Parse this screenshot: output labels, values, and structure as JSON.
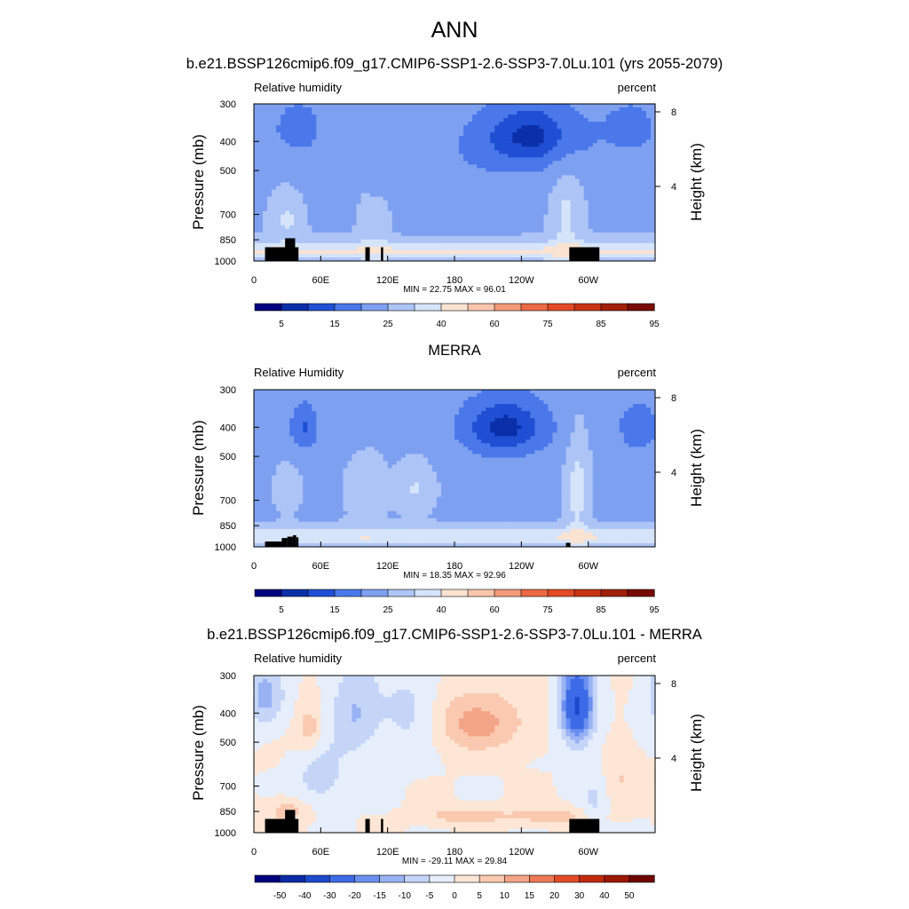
{
  "figure": {
    "title": "ANN",
    "panels": [
      {
        "title": "b.e21.BSSP126cmip6.f09_g17.CMIP6-SSP1-2.6-SSP3-7.0Lu.101 (yrs 2055-2079)",
        "variable": "Relative humidity",
        "units": "percent",
        "min_max": "MIN =  22.75  MAX =  96.01"
      },
      {
        "title": "MERRA",
        "variable": "Relative Humidity",
        "units": "percent",
        "min_max": "MIN =  18.35  MAX =  92.96"
      },
      {
        "title": "b.e21.BSSP126cmip6.f09_g17.CMIP6-SSP1-2.6-SSP3-7.0Lu.101 - MERRA",
        "variable": "Relative humidity",
        "units": "percent",
        "min_max": "MIN = -29.11  MAX =  29.84"
      }
    ],
    "y_label": "Pressure (mb)",
    "right_label": "Height (km)"
  },
  "chart_data": [
    {
      "type": "heatmap",
      "name": "model",
      "title": "b.e21.BSSP126cmip6.f09_g17.CMIP6-SSP1-2.6-SSP3-7.0Lu.101 (yrs 2055-2079)",
      "variable": "Relative humidity",
      "units": "percent",
      "x_ticks": [
        "0",
        "60E",
        "120E",
        "180",
        "120W",
        "60W"
      ],
      "x_tick_lon": [
        0,
        60,
        120,
        180,
        240,
        300
      ],
      "x_range": [
        0,
        360
      ],
      "y_ticks": [
        "300",
        "400",
        "500",
        "700",
        "850",
        "1000"
      ],
      "y_tick_p": [
        300,
        400,
        500,
        700,
        850,
        1000
      ],
      "y_range": [
        300,
        1000
      ],
      "height_ticks": [
        "8",
        "4"
      ],
      "height_tick_km": [
        8,
        4
      ],
      "levels": [
        5,
        15,
        25,
        40,
        60,
        75,
        85,
        95
      ],
      "min": 22.75,
      "max": 96.01,
      "field_blobs": [
        {
          "lon": 40,
          "p": 360,
          "amp": -30,
          "slon": 16,
          "sp": 55
        },
        {
          "lon": 250,
          "p": 380,
          "amp": -42,
          "slon": 38,
          "sp": 80
        },
        {
          "lon": 340,
          "p": 360,
          "amp": -25,
          "slon": 18,
          "sp": 60
        },
        {
          "lon": 170,
          "p": 520,
          "amp": -12,
          "slon": 70,
          "sp": 150
        },
        {
          "lon": 30,
          "p": 720,
          "amp": 20,
          "slon": 10,
          "sp": 90
        },
        {
          "lon": 100,
          "p": 720,
          "amp": 15,
          "slon": 6,
          "sp": 110
        },
        {
          "lon": 115,
          "p": 720,
          "amp": 15,
          "slon": 6,
          "sp": 110
        },
        {
          "lon": 280,
          "p": 700,
          "amp": 22,
          "slon": 10,
          "sp": 170
        }
      ]
    },
    {
      "type": "heatmap",
      "name": "merra",
      "title": "MERRA",
      "variable": "Relative Humidity",
      "units": "percent",
      "x_ticks": [
        "0",
        "60E",
        "120E",
        "180",
        "120W",
        "60W"
      ],
      "x_tick_lon": [
        0,
        60,
        120,
        180,
        240,
        300
      ],
      "x_range": [
        0,
        360
      ],
      "y_ticks": [
        "300",
        "400",
        "500",
        "700",
        "850",
        "1000"
      ],
      "y_tick_p": [
        300,
        400,
        500,
        700,
        850,
        1000
      ],
      "y_range": [
        300,
        1000
      ],
      "height_ticks": [
        "8",
        "4"
      ],
      "height_tick_km": [
        8,
        4
      ],
      "levels": [
        5,
        15,
        25,
        40,
        60,
        75,
        85,
        95
      ],
      "min": 18.35,
      "max": 92.96,
      "field_blobs": [
        {
          "lon": 45,
          "p": 400,
          "amp": -32,
          "slon": 10,
          "sp": 60
        },
        {
          "lon": 225,
          "p": 400,
          "amp": -45,
          "slon": 32,
          "sp": 75
        },
        {
          "lon": 345,
          "p": 400,
          "amp": -30,
          "slon": 14,
          "sp": 60
        },
        {
          "lon": 85,
          "p": 380,
          "amp": -10,
          "slon": 15,
          "sp": 60
        },
        {
          "lon": 30,
          "p": 650,
          "amp": 18,
          "slon": 8,
          "sp": 80
        },
        {
          "lon": 100,
          "p": 650,
          "amp": 18,
          "slon": 12,
          "sp": 120
        },
        {
          "lon": 145,
          "p": 640,
          "amp": 20,
          "slon": 12,
          "sp": 90
        },
        {
          "lon": 290,
          "p": 650,
          "amp": 25,
          "slon": 8,
          "sp": 200
        }
      ]
    },
    {
      "type": "heatmap",
      "name": "difference",
      "title": "b.e21.BSSP126cmip6.f09_g17.CMIP6-SSP1-2.6-SSP3-7.0Lu.101 - MERRA",
      "variable": "Relative humidity",
      "units": "percent",
      "x_ticks": [
        "0",
        "60E",
        "120E",
        "180",
        "120W",
        "60W"
      ],
      "x_tick_lon": [
        0,
        60,
        120,
        180,
        240,
        300
      ],
      "x_range": [
        0,
        360
      ],
      "y_ticks": [
        "300",
        "400",
        "500",
        "700",
        "850",
        "1000"
      ],
      "y_tick_p": [
        300,
        400,
        500,
        700,
        850,
        1000
      ],
      "y_range": [
        300,
        1000
      ],
      "height_ticks": [
        "8",
        "4"
      ],
      "height_tick_km": [
        8,
        4
      ],
      "levels": [
        -50,
        -40,
        -30,
        -20,
        -15,
        -10,
        -5,
        0,
        5,
        10,
        15,
        20,
        30,
        40,
        50
      ],
      "min": -29.11,
      "max": 29.84,
      "field_blobs": [
        {
          "lon": 290,
          "p": 380,
          "amp": -32,
          "slon": 10,
          "sp": 80
        },
        {
          "lon": 10,
          "p": 350,
          "amp": -12,
          "slon": 12,
          "sp": 60
        },
        {
          "lon": 90,
          "p": 400,
          "amp": -10,
          "slon": 15,
          "sp": 100
        },
        {
          "lon": 140,
          "p": 400,
          "amp": -7,
          "slon": 20,
          "sp": 100
        },
        {
          "lon": 200,
          "p": 430,
          "amp": 12,
          "slon": 30,
          "sp": 70
        },
        {
          "lon": 50,
          "p": 450,
          "amp": 8,
          "slon": 8,
          "sp": 60
        },
        {
          "lon": 190,
          "p": 880,
          "amp": 9,
          "slon": 25,
          "sp": 40
        },
        {
          "lon": 265,
          "p": 880,
          "amp": 8,
          "slon": 25,
          "sp": 40
        },
        {
          "lon": 30,
          "p": 850,
          "amp": 8,
          "slon": 12,
          "sp": 50
        },
        {
          "lon": 60,
          "p": 650,
          "amp": -8,
          "slon": 15,
          "sp": 100
        },
        {
          "lon": 330,
          "p": 650,
          "amp": 5,
          "slon": 10,
          "sp": 100
        },
        {
          "lon": 305,
          "p": 780,
          "amp": -6,
          "slon": 8,
          "sp": 100
        }
      ]
    }
  ],
  "colors": {
    "rh_fills": [
      "#00007f",
      "#0a2fa8",
      "#1f4fd4",
      "#4a78ea",
      "#7ea0f1",
      "#adc4f6",
      "#d6e4fa",
      "#fbe3d2",
      "#f9c6ad",
      "#f29a79",
      "#eb6a45",
      "#e44a26",
      "#c83414",
      "#a0200a",
      "#780a02"
    ],
    "diff_fills": [
      "#00007f",
      "#0b2aa6",
      "#1d49cd",
      "#3d6ae6",
      "#6a8ff0",
      "#98b2f4",
      "#c5d5f8",
      "#e6eefc",
      "#fde6d6",
      "#fac9b0",
      "#f4a487",
      "#ed7855",
      "#e24c27",
      "#c02a0d",
      "#9c1803",
      "#700502"
    ],
    "topography": "#000000"
  }
}
